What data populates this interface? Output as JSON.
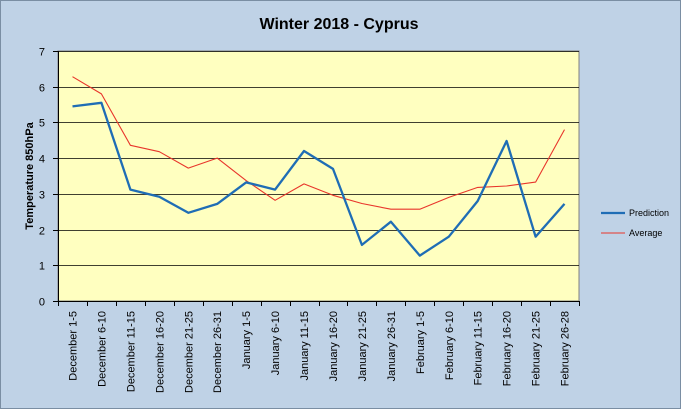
{
  "chart_data": {
    "type": "line",
    "title": "Winter 2018 - Cyprus",
    "xlabel": "",
    "ylabel": "Temperature 850hPa",
    "ylim": [
      0,
      7
    ],
    "yticks": [
      0,
      1,
      2,
      3,
      4,
      5,
      6,
      7
    ],
    "grid": "horizontal",
    "legend_position": "right",
    "categories": [
      "December 1-5",
      "December 6-10",
      "December 11-15",
      "December 16-20",
      "December 21-25",
      "December 26-31",
      "January 1-5",
      "January 6-10",
      "January 11-15",
      "January 16-20",
      "January 21-25",
      "January 26-31",
      "February 1-5",
      "February 6-10",
      "February 11-15",
      "February 16-20",
      "February 21-25",
      "February 26-28"
    ],
    "series": [
      {
        "name": "Prediction",
        "color": "#1f6db5",
        "values": [
          5.45,
          5.55,
          3.12,
          2.92,
          2.47,
          2.72,
          3.32,
          3.12,
          4.2,
          3.7,
          1.57,
          2.22,
          1.27,
          1.8,
          2.8,
          4.48,
          1.8,
          2.72
        ]
      },
      {
        "name": "Average",
        "color": "#e8352b",
        "values": [
          6.28,
          5.8,
          4.36,
          4.18,
          3.72,
          4.0,
          3.37,
          2.82,
          3.28,
          2.96,
          2.73,
          2.57,
          2.57,
          2.9,
          3.18,
          3.22,
          3.33,
          4.8
        ]
      }
    ]
  },
  "colors": {
    "frame_bg": "#bfd2e6",
    "plot_bg": "#ffffc0",
    "grid": "#000000"
  }
}
